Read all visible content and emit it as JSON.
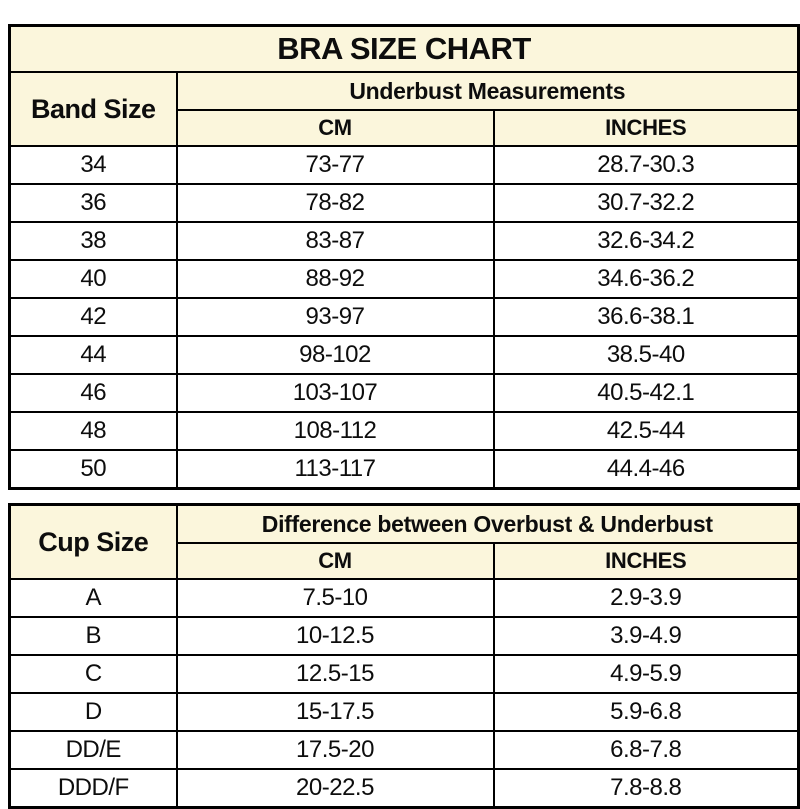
{
  "title": "BRA SIZE CHART",
  "colors": {
    "header_bg": "#FBF6DC",
    "border": "#000000",
    "text": "#0d0d0d",
    "page_bg": "#FFFFFF"
  },
  "chart_data": [
    {
      "type": "table",
      "name": "band_size_table",
      "title": "BRA SIZE CHART",
      "corner_header": "Band Size",
      "group_header": "Underbust Measurements",
      "sub_headers": [
        "CM",
        "INCHES"
      ],
      "rows": [
        {
          "label": "34",
          "cm": "73-77",
          "inches": "28.7-30.3"
        },
        {
          "label": "36",
          "cm": "78-82",
          "inches": "30.7-32.2"
        },
        {
          "label": "38",
          "cm": "83-87",
          "inches": "32.6-34.2"
        },
        {
          "label": "40",
          "cm": "88-92",
          "inches": "34.6-36.2"
        },
        {
          "label": "42",
          "cm": "93-97",
          "inches": "36.6-38.1"
        },
        {
          "label": "44",
          "cm": "98-102",
          "inches": "38.5-40"
        },
        {
          "label": "46",
          "cm": "103-107",
          "inches": "40.5-42.1"
        },
        {
          "label": "48",
          "cm": "108-112",
          "inches": "42.5-44"
        },
        {
          "label": "50",
          "cm": "113-117",
          "inches": "44.4-46"
        }
      ]
    },
    {
      "type": "table",
      "name": "cup_size_table",
      "corner_header": "Cup Size",
      "group_header": "Difference between Overbust & Underbust",
      "sub_headers": [
        "CM",
        "INCHES"
      ],
      "rows": [
        {
          "label": "A",
          "cm": "7.5-10",
          "inches": "2.9-3.9"
        },
        {
          "label": "B",
          "cm": "10-12.5",
          "inches": "3.9-4.9"
        },
        {
          "label": "C",
          "cm": "12.5-15",
          "inches": "4.9-5.9"
        },
        {
          "label": "D",
          "cm": "15-17.5",
          "inches": "5.9-6.8"
        },
        {
          "label": "DD/E",
          "cm": "17.5-20",
          "inches": "6.8-7.8"
        },
        {
          "label": "DDD/F",
          "cm": "20-22.5",
          "inches": "7.8-8.8"
        }
      ]
    }
  ]
}
